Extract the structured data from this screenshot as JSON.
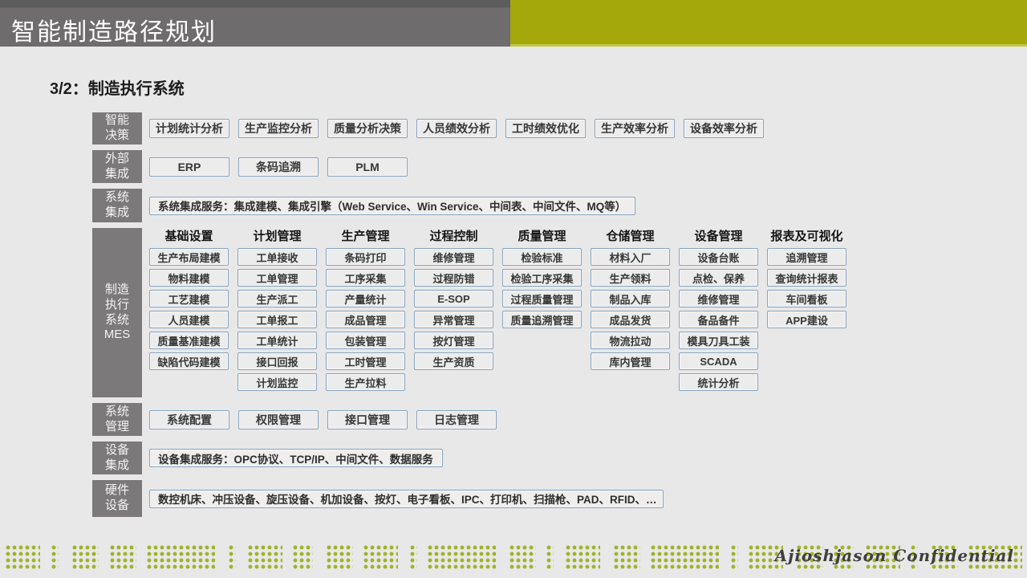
{
  "header": {
    "title": "智能制造路径规划"
  },
  "subtitle": {
    "prefix": "3/2：",
    "text": "制造执行系统"
  },
  "colors": {
    "header_gray": "#6e6c6c",
    "accent_olive": "#a4a80b",
    "label_gray": "#7b7979",
    "box_border_blue": "#87a3bf",
    "dot_green": "#9fb32a"
  },
  "diagram": {
    "rows": [
      {
        "id": "smart-decision",
        "type": "buttons",
        "label": "智能\n决策",
        "items": [
          "计划统计分析",
          "生产监控分析",
          "质量分析决策",
          "人员绩效分析",
          "工时绩效优化",
          "生产效率分析",
          "设备效率分析"
        ]
      },
      {
        "id": "external-integration",
        "type": "buttons",
        "label": "外部\n集成",
        "items": [
          "ERP",
          "条码追溯",
          "PLM"
        ]
      },
      {
        "id": "system-integration",
        "type": "bar",
        "label": "系统\n集成",
        "bar": "系统集成服务：集成建模、集成引擎（Web Service、Win Service、中间表、中间文件、MQ等）"
      },
      {
        "id": "mes",
        "type": "grid",
        "label": "制造\n执行\n系统\nMES",
        "columns": [
          {
            "header": "基础设置",
            "items": [
              "生产布局建模",
              "物料建模",
              "工艺建模",
              "人员建模",
              "质量基准建模",
              "缺陷代码建模"
            ]
          },
          {
            "header": "计划管理",
            "items": [
              "工单接收",
              "工单管理",
              "生产派工",
              "工单报工",
              "工单统计",
              "接口回报",
              "计划监控"
            ]
          },
          {
            "header": "生产管理",
            "items": [
              "条码打印",
              "工序采集",
              "产量统计",
              "成品管理",
              "包装管理",
              "工时管理",
              "生产拉料"
            ]
          },
          {
            "header": "过程控制",
            "items": [
              "维修管理",
              "过程防错",
              "E-SOP",
              "异常管理",
              "按灯管理",
              "生产资质"
            ]
          },
          {
            "header": "质量管理",
            "items": [
              "检验标准",
              "检验工序采集",
              "过程质量管理",
              "质量追溯管理"
            ]
          },
          {
            "header": "仓储管理",
            "items": [
              "材料入厂",
              "生产领料",
              "制品入库",
              "成品发货",
              "物流拉动",
              "库内管理"
            ]
          },
          {
            "header": "设备管理",
            "items": [
              "设备台账",
              "点检、保养",
              "维修管理",
              "备品备件",
              "模具刀具工装",
              "SCADA",
              "统计分析"
            ]
          },
          {
            "header": "报表及可视化",
            "items": [
              "追溯管理",
              "查询统计报表",
              "车间看板",
              "APP建设"
            ]
          }
        ]
      },
      {
        "id": "system-management",
        "type": "buttons",
        "label": "系统\n管理",
        "items": [
          "系统配置",
          "权限管理",
          "接口管理",
          "日志管理"
        ]
      },
      {
        "id": "device-integration",
        "type": "bar",
        "label": "设备\n集成",
        "bar": "设备集成服务：OPC协议、TCP/IP、中间文件、数据服务"
      },
      {
        "id": "hardware",
        "type": "bar",
        "label": "硬件\n设备",
        "bar": "数控机床、冲压设备、旋压设备、机加设备、按灯、电子看板、IPC、打印机、扫描枪、PAD、RFID、…"
      }
    ]
  },
  "watermark": "Ajioshjason Confidential"
}
